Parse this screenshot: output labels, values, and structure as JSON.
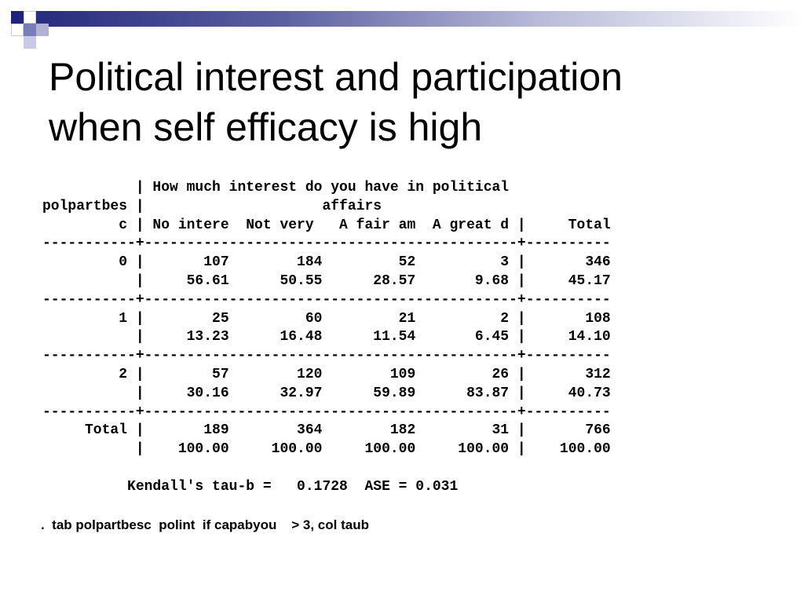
{
  "slide": {
    "title_lines": [
      "Political interest and participation",
      "when self efficacy is high"
    ],
    "command": ".  tab polpartbesc  polint  if capabyou    > 3, col taub"
  },
  "output": {
    "header_lines": [
      "           | How much interest do you have in political",
      "polpartbes |                     affairs",
      "         c | No intere  Not very   A fair am  A great d |     Total"
    ],
    "separator": "-----------+--------------------------------------------+----------",
    "rows": [
      {
        "freq_line": "         0 |       107        184         52          3 |       346",
        "pct_line": "           |     56.61      50.55      28.57       9.68 |     45.17"
      },
      {
        "freq_line": "         1 |        25         60         21          2 |       108",
        "pct_line": "           |     13.23      16.48      11.54       6.45 |     14.10"
      },
      {
        "freq_line": "         2 |        57        120        109         26 |       312",
        "pct_line": "           |     30.16      32.97      59.89      83.87 |     40.73"
      }
    ],
    "total": {
      "freq_line": "     Total |       189        364        182         31 |       766",
      "pct_line": "           |    100.00     100.00     100.00     100.00 |    100.00"
    },
    "stat_line": "          Kendall's tau-b =   0.1728  ASE = 0.031"
  },
  "table": {
    "row_variable": "polpartbesc",
    "column_variable": "How much interest do you have in political affairs",
    "columns": [
      "No intere",
      "Not very",
      "A fair am",
      "A great d",
      "Total"
    ],
    "rows": [
      {
        "label": "0",
        "freq": [
          107,
          184,
          52,
          3,
          346
        ],
        "col_pct": [
          56.61,
          50.55,
          28.57,
          9.68,
          45.17
        ]
      },
      {
        "label": "1",
        "freq": [
          25,
          60,
          21,
          2,
          108
        ],
        "col_pct": [
          13.23,
          16.48,
          11.54,
          6.45,
          14.1
        ]
      },
      {
        "label": "2",
        "freq": [
          57,
          120,
          109,
          26,
          312
        ],
        "col_pct": [
          30.16,
          32.97,
          59.89,
          83.87,
          40.73
        ]
      },
      {
        "label": "Total",
        "freq": [
          189,
          364,
          182,
          31,
          766
        ],
        "col_pct": [
          100.0,
          100.0,
          100.0,
          100.0,
          100.0
        ]
      }
    ],
    "kendall_tau_b": 0.1728,
    "ase": 0.031
  },
  "colors": {
    "brand_dark": "#1f237a",
    "brand_mid": "#7a7eb8",
    "brand_light": "#c8cae6",
    "text": "#000000",
    "background": "#ffffff"
  }
}
